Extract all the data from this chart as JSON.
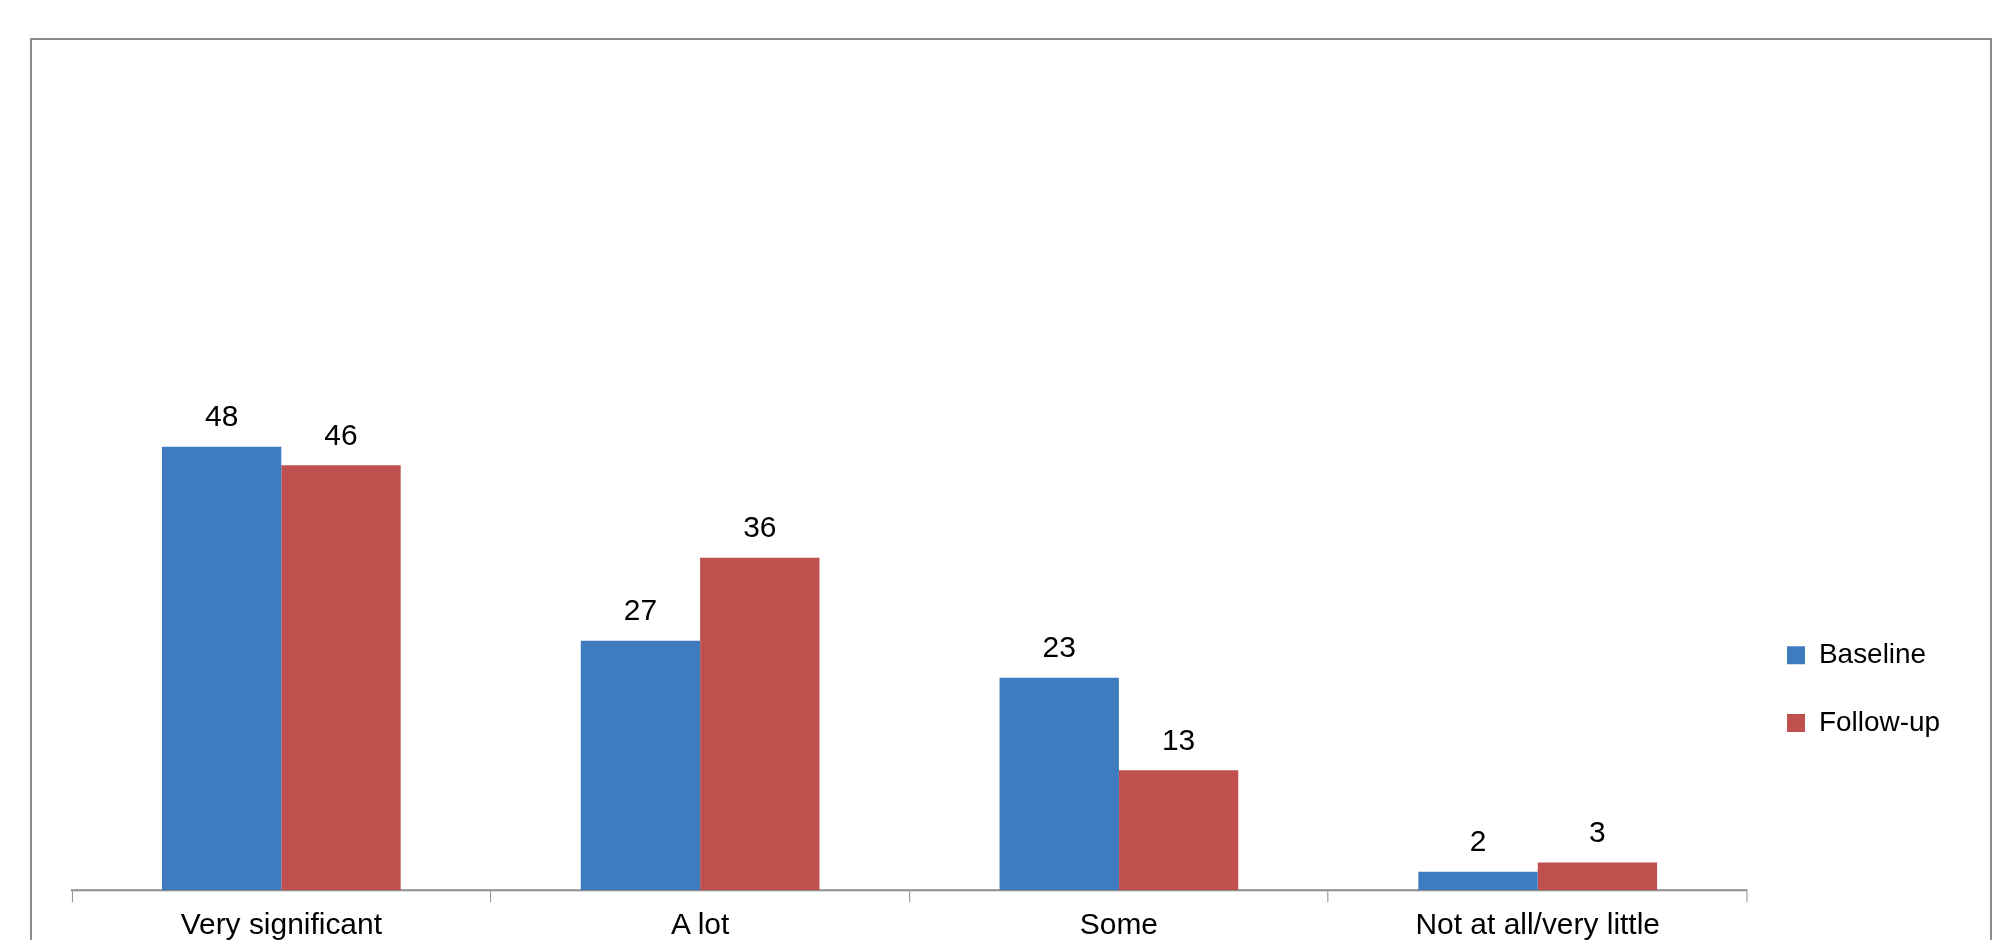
{
  "chart_data": {
    "type": "bar",
    "categories": [
      "Very significant",
      "A lot",
      "Some",
      "Not at all/very little"
    ],
    "series": [
      {
        "name": "Baseline",
        "color": "#3f7cbf",
        "values": [
          48,
          27,
          23,
          2
        ]
      },
      {
        "name": "Follow-up",
        "color": "#c0504d",
        "values": [
          46,
          36,
          13,
          3
        ]
      }
    ],
    "tick_labels": "x",
    "grid": false,
    "legend": "right",
    "data_labels": true
  }
}
